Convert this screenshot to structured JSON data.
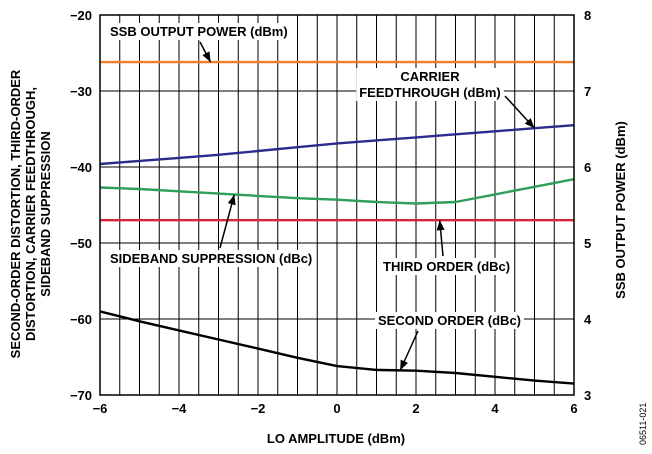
{
  "chart_data": {
    "type": "line",
    "xlabel": "LO AMPLITUDE (dBm)",
    "ylabel_left_lines": [
      "SECOND-ORDER DISTORTION, THIRD-ORDER",
      "DISTORTION, CARRIER FEEDTHROUGH,",
      "SIDEBAND SUPPRESSION"
    ],
    "ylabel_right": "SSB OUTPUT POWER (dBm)",
    "xlim": [
      -6,
      6
    ],
    "ylim_left": [
      -70,
      -20
    ],
    "ylim_right": [
      3,
      8
    ],
    "x_ticks": [
      "−6",
      "−4",
      "−2",
      "0",
      "2",
      "4",
      "6"
    ],
    "y_ticks_left": [
      "−20",
      "−30",
      "−40",
      "−50",
      "−60",
      "−70"
    ],
    "y_ticks_right": [
      "8",
      "7",
      "6",
      "5",
      "4",
      "3"
    ],
    "grid": true,
    "series": [
      {
        "name": "SSB OUTPUT POWER (dBm)",
        "axis": "right",
        "color": "#f07f2a",
        "x": [
          -6,
          -4,
          -2,
          0,
          2,
          4,
          6
        ],
        "y": [
          7.38,
          7.38,
          7.38,
          7.38,
          7.38,
          7.38,
          7.38
        ]
      },
      {
        "name": "CARRIER FEEDTHROUGH (dBm)",
        "axis": "left",
        "color": "#2c2c8c",
        "x": [
          -6,
          -5,
          -4,
          -3,
          -2,
          -1,
          0,
          1,
          2,
          3,
          4,
          5,
          6
        ],
        "y": [
          -39.6,
          -39.2,
          -38.8,
          -38.4,
          -37.9,
          -37.4,
          -36.9,
          -36.5,
          -36.1,
          -35.7,
          -35.3,
          -34.9,
          -34.5
        ]
      },
      {
        "name": "SIDEBAND SUPPRESSION (dBc)",
        "axis": "left",
        "color": "#2e9e5a",
        "x": [
          -6,
          -5,
          -4,
          -3,
          -2,
          -1,
          0,
          1,
          2,
          3,
          4,
          5,
          6
        ],
        "y": [
          -42.7,
          -42.9,
          -43.2,
          -43.5,
          -43.8,
          -44.1,
          -44.3,
          -44.6,
          -44.8,
          -44.6,
          -43.6,
          -42.6,
          -41.6
        ]
      },
      {
        "name": "THIRD ORDER (dBc)",
        "axis": "left",
        "color": "#d6243c",
        "x": [
          -6,
          -4,
          -2,
          0,
          2,
          4,
          6
        ],
        "y": [
          -47.0,
          -47.0,
          -47.0,
          -47.0,
          -47.0,
          -47.0,
          -47.0
        ]
      },
      {
        "name": "SECOND ORDER (dBc)",
        "axis": "left",
        "color": "#000000",
        "x": [
          -6,
          -5,
          -4,
          -3,
          -2,
          -1,
          0,
          1,
          2,
          3,
          4,
          5,
          6
        ],
        "y": [
          -59.0,
          -60.3,
          -61.5,
          -62.7,
          -63.9,
          -65.1,
          -66.2,
          -66.7,
          -66.8,
          -67.1,
          -67.6,
          -68.1,
          -68.5
        ]
      }
    ],
    "annotations": [
      {
        "lines": [
          "SSB OUTPUT POWER (dBm)"
        ],
        "series": 0,
        "arrow_x": -3.2
      },
      {
        "lines": [
          "CARRIER",
          "FEEDTHROUGH (dBm)"
        ],
        "series": 1,
        "arrow_x": 5.0
      },
      {
        "lines": [
          "SIDEBAND SUPPRESSION (dBc)"
        ],
        "series": 2,
        "arrow_x": -2.6
      },
      {
        "lines": [
          "THIRD ORDER (dBc)"
        ],
        "series": 3,
        "arrow_x": 2.6
      },
      {
        "lines": [
          "SECOND ORDER (dBc)"
        ],
        "series": 4,
        "arrow_x": 1.6
      }
    ],
    "figure_id": "06511-021"
  }
}
